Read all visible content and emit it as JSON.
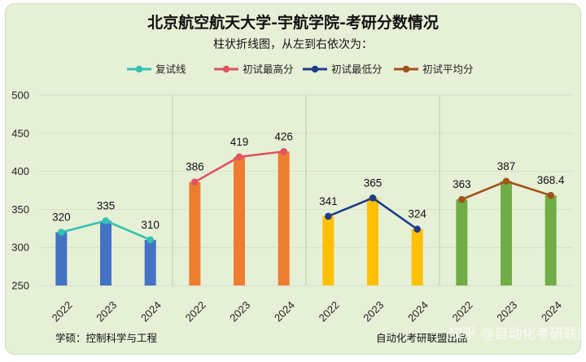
{
  "title": "北京航空航天大学-宇航学院-考研分数情况",
  "subtitle": "柱状折线图，从左到右依次为：",
  "legend": [
    {
      "label": "复试线",
      "color": "#33c1b1"
    },
    {
      "label": "初试最高分",
      "color": "#e05265"
    },
    {
      "label": "初试最低分",
      "color": "#1f3c88"
    },
    {
      "label": "初试平均分",
      "color": "#a0521b"
    }
  ],
  "footer": {
    "left": "学硕：控制科学与工程",
    "right": "自动化考研联盟出品",
    "watermark": "知乎 @自动化考研联盟"
  },
  "chart_data": {
    "type": "bar",
    "ylim": [
      250,
      500
    ],
    "yticks": [
      250,
      300,
      350,
      400,
      450,
      500
    ],
    "panels": [
      {
        "name": "复试线",
        "bar_color": "#4472c4",
        "line_color": "#33c1b1",
        "categories": [
          "2022",
          "2023",
          "2024"
        ],
        "values": [
          320,
          335,
          310
        ],
        "labels": [
          "320",
          "335",
          "310"
        ]
      },
      {
        "name": "初试最高分",
        "bar_color": "#ed7d31",
        "line_color": "#e05265",
        "categories": [
          "2022",
          "2023",
          "2024"
        ],
        "values": [
          386,
          419,
          426
        ],
        "labels": [
          "386",
          "419",
          "426"
        ]
      },
      {
        "name": "初试最低分",
        "bar_color": "#ffc000",
        "line_color": "#1f3c88",
        "categories": [
          "2022",
          "2023",
          "2024"
        ],
        "values": [
          341,
          365,
          324
        ],
        "labels": [
          "341",
          "365",
          "324"
        ]
      },
      {
        "name": "初试平均分",
        "bar_color": "#70ad47",
        "line_color": "#a0521b",
        "categories": [
          "2022",
          "2023",
          "2024"
        ],
        "values": [
          363,
          387,
          368.4
        ],
        "labels": [
          "363",
          "387",
          "368.4"
        ]
      }
    ]
  }
}
